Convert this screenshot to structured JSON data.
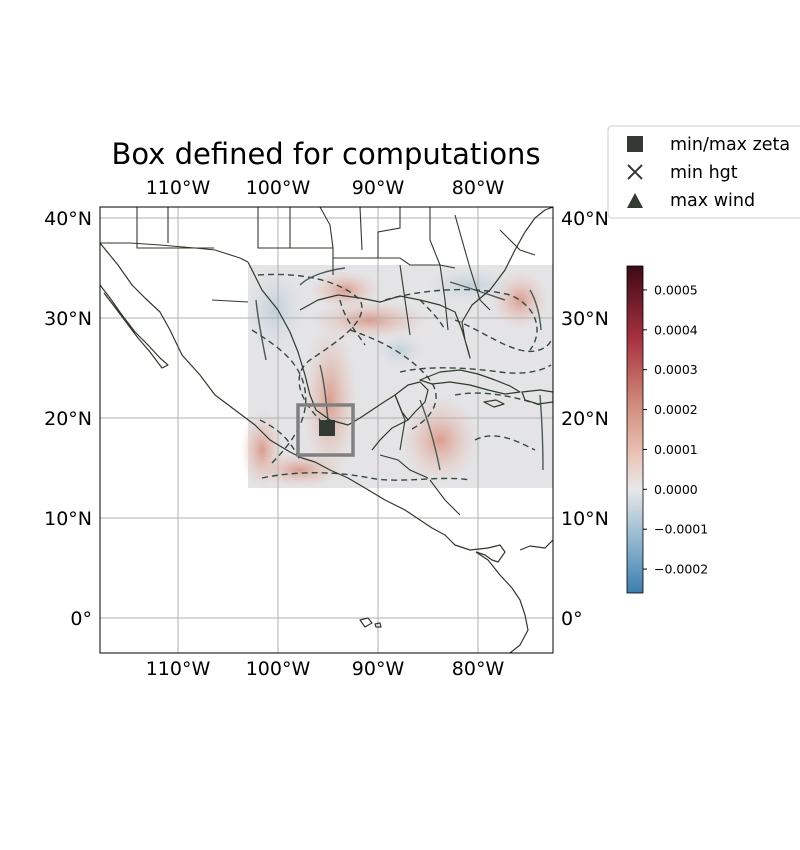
{
  "title": "Box defined for computations",
  "map": {
    "lon_range": [
      -118,
      -72.5
    ],
    "lat_range": [
      -3.5,
      41
    ],
    "xticks": [
      {
        "lon": -110,
        "label": "110°W"
      },
      {
        "lon": -100,
        "label": "100°W"
      },
      {
        "lon": -90,
        "label": "90°W"
      },
      {
        "lon": -80,
        "label": "80°W"
      }
    ],
    "yticks": [
      {
        "lat": 40,
        "label": "40°N"
      },
      {
        "lat": 30,
        "label": "30°N"
      },
      {
        "lat": 20,
        "label": "20°N"
      },
      {
        "lat": 10,
        "label": "10°N"
      },
      {
        "lat": 0,
        "label": "0°"
      }
    ],
    "field_extent": {
      "lon": [
        -103.3,
        -72.5
      ],
      "lat": [
        13.0,
        35.2
      ]
    },
    "computation_box": {
      "lon": [
        -98,
        -92.5
      ],
      "lat": [
        16,
        21
      ]
    },
    "markers": {
      "min_max_zeta": {
        "lon": -95.1,
        "lat": 18.9
      },
      "min_hgt": {
        "lon": -95.1,
        "lat": 18.9
      },
      "max_wind": {
        "lon": -95.1,
        "lat": 18.9
      }
    },
    "gridlines": true
  },
  "legend": {
    "items": [
      {
        "symbol": "square",
        "label": "min/max zeta"
      },
      {
        "symbol": "x",
        "label": "min hgt"
      },
      {
        "symbol": "triangle",
        "label": "max wind"
      }
    ]
  },
  "colorbar": {
    "range": [
      -0.00026,
      0.00056
    ],
    "ticks": [
      {
        "value": 0.0005,
        "label": "0.0005"
      },
      {
        "value": 0.0004,
        "label": "0.0004"
      },
      {
        "value": 0.0003,
        "label": "0.0003"
      },
      {
        "value": 0.0002,
        "label": "0.0002"
      },
      {
        "value": 0.0001,
        "label": "0.0001"
      },
      {
        "value": 0.0,
        "label": "0.0000"
      },
      {
        "value": -0.0001,
        "label": "−0.0001"
      },
      {
        "value": -0.0002,
        "label": "−0.0002"
      }
    ],
    "colors": {
      "negative_end": "#3b7fb0",
      "zero": "#e8e8e8",
      "positive_mid": "#c8685a",
      "positive_end": "#3d0a14"
    }
  },
  "colors": {
    "marker": "#323a32",
    "box": "#808080",
    "coastline": "#2e3b2a",
    "contour": "#2f4a40"
  }
}
